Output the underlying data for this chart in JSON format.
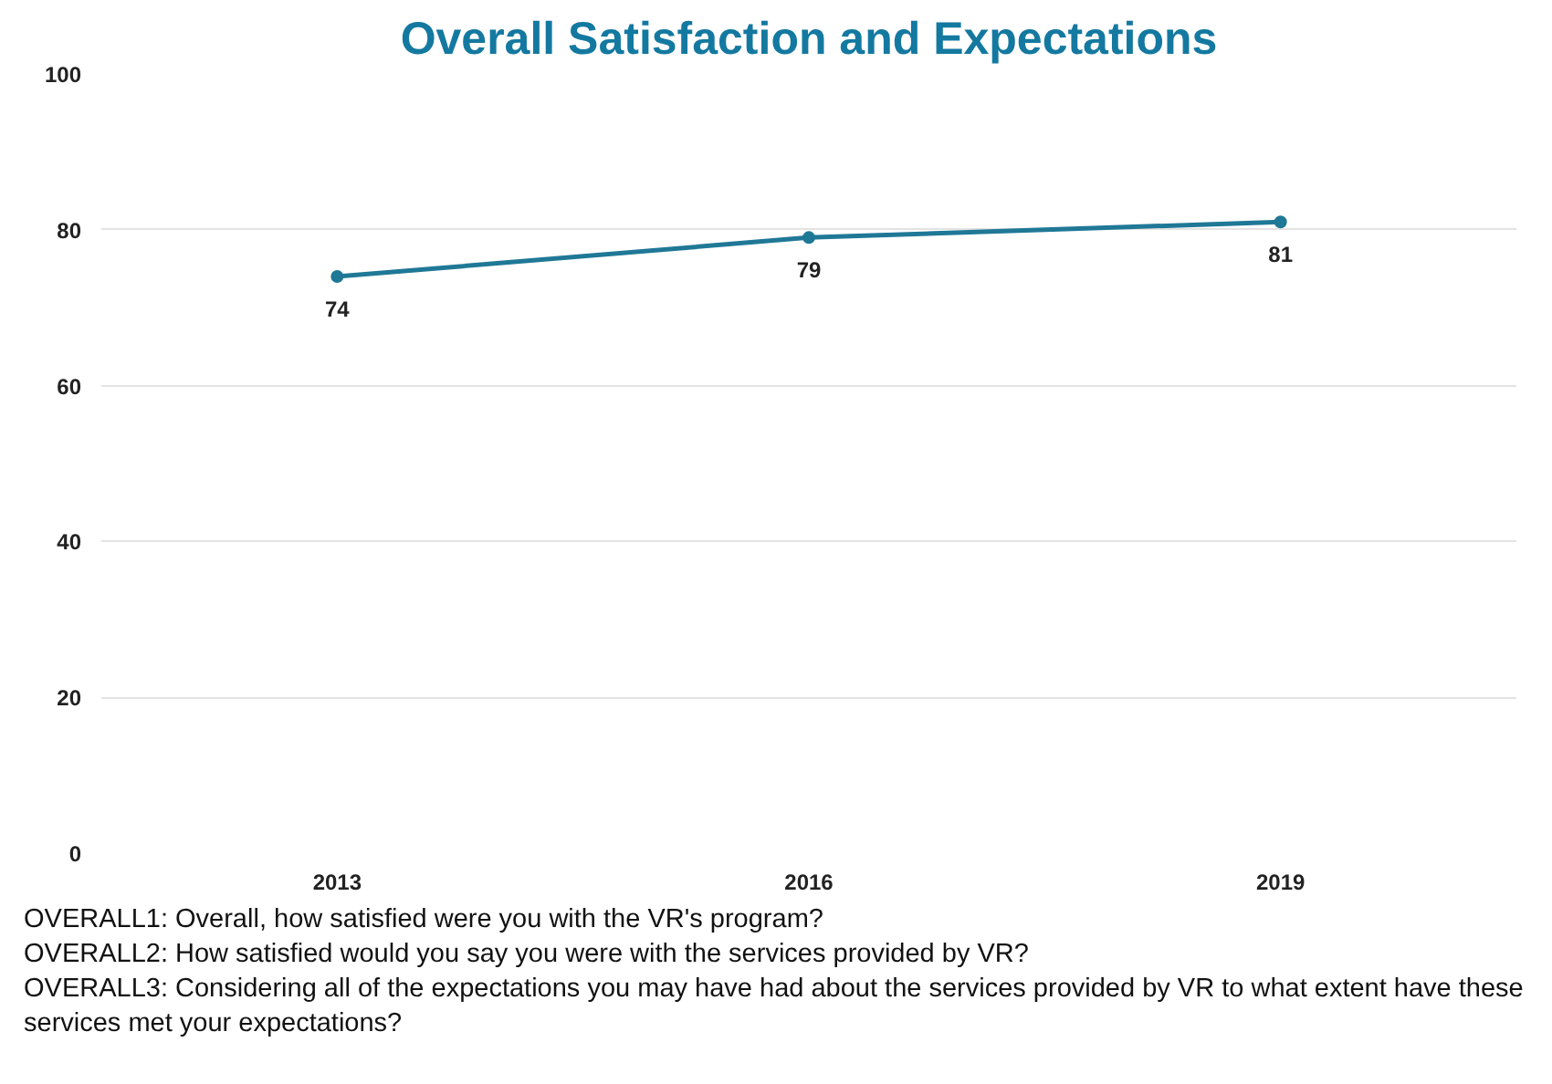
{
  "chart_data": {
    "type": "line",
    "title": "Overall Satisfaction and Expectations",
    "categories": [
      "2013",
      "2016",
      "2019"
    ],
    "series": [
      {
        "color": "#1f7896",
        "values": [
          74,
          79,
          81
        ]
      }
    ],
    "ylim": [
      0,
      100
    ],
    "yticks": [
      0,
      20,
      40,
      60,
      80,
      100
    ],
    "grid": "y",
    "marker": "circle",
    "line_style": "solid",
    "data_labels": true,
    "annotations": [
      "OVERALL1: Overall, how satisfied were you with the VR's program?",
      "OVERALL2: How satisfied would you say you were with the services provided by VR?",
      "OVERALL3: Considering all of the expectations you may have had about the services provided by VR to what extent have these services met your expectations?"
    ]
  }
}
